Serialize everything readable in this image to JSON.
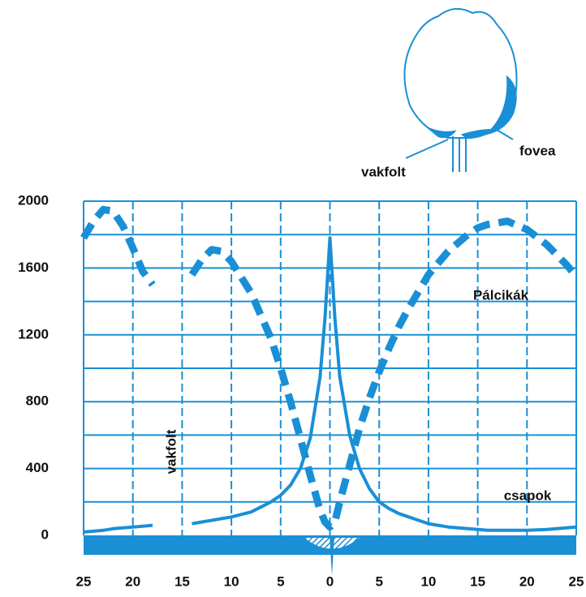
{
  "chart_data": {
    "type": "line",
    "x": [
      -25,
      -24,
      -23,
      -22,
      -21,
      -20,
      -19,
      -18,
      -16,
      -14,
      -13,
      -12,
      -11,
      -10,
      -8,
      -6,
      -5,
      -4,
      -3,
      -2,
      -1,
      -0.5,
      0,
      0.5,
      1,
      2,
      3,
      4,
      5,
      6,
      7,
      8,
      10,
      12,
      14,
      15,
      16,
      18,
      20,
      22,
      24,
      25
    ],
    "series": [
      {
        "name": "Pálcikák",
        "color": "#1a8fd6",
        "dashed": true,
        "values": [
          1780,
          1880,
          1950,
          1940,
          1850,
          1720,
          1580,
          1500,
          null,
          1560,
          1650,
          1710,
          1700,
          1640,
          1450,
          1180,
          1000,
          800,
          580,
          360,
          150,
          80,
          50,
          80,
          200,
          420,
          640,
          820,
          980,
          1120,
          1250,
          1360,
          1560,
          1700,
          1800,
          1840,
          1860,
          1880,
          1830,
          1740,
          1620,
          1550
        ]
      },
      {
        "name": "csapok",
        "color": "#1a8fd6",
        "dashed": false,
        "values": [
          20,
          25,
          30,
          40,
          45,
          50,
          55,
          60,
          null,
          70,
          80,
          90,
          100,
          110,
          140,
          200,
          240,
          300,
          400,
          580,
          950,
          1300,
          1780,
          1300,
          950,
          600,
          400,
          280,
          200,
          160,
          130,
          110,
          70,
          50,
          40,
          35,
          30,
          30,
          30,
          35,
          45,
          50
        ]
      }
    ],
    "xlim": [
      -25,
      25
    ],
    "xticks": [
      {
        "value": -25,
        "label": "25"
      },
      {
        "value": -20,
        "label": "20"
      },
      {
        "value": -15,
        "label": "15"
      },
      {
        "value": -10,
        "label": "10"
      },
      {
        "value": -5,
        "label": "5"
      },
      0,
      5,
      10,
      15,
      20,
      25
    ],
    "ylim": [
      0,
      2000
    ],
    "yticks": [
      0,
      400,
      800,
      1200,
      1600,
      2000
    ],
    "y_gridlines": [
      200,
      400,
      600,
      800,
      1000,
      1200,
      1400,
      1600,
      1800,
      2000
    ],
    "grid": true,
    "annotations": [
      {
        "text": "vakfolt",
        "x": -16,
        "y": 500
      }
    ],
    "diagram_labels": [
      "vakfolt",
      "fovea"
    ]
  }
}
